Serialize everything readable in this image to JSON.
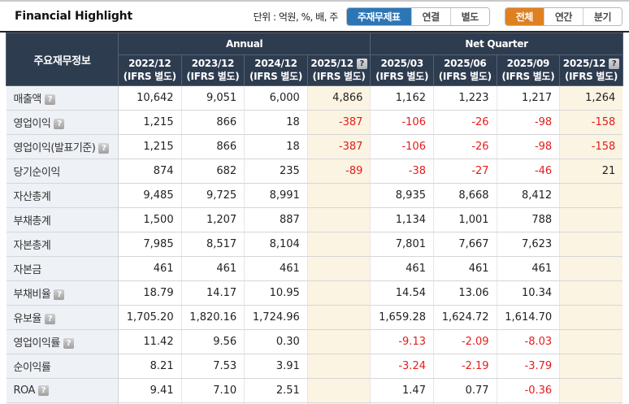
{
  "header": {
    "title": "Financial Highlight",
    "unit_label": "단위 : 억원, %, 배, 주",
    "statement_tabs": [
      {
        "label": "주재무제표",
        "active": true
      },
      {
        "label": "연결",
        "active": false
      },
      {
        "label": "별도",
        "active": false
      }
    ],
    "period_tabs": [
      {
        "label": "전체",
        "active": true
      },
      {
        "label": "연간",
        "active": false
      },
      {
        "label": "분기",
        "active": false
      }
    ]
  },
  "table": {
    "corner_header": "주요재무정보",
    "column_groups": [
      {
        "label": "Annual",
        "span": 4
      },
      {
        "label": "Net Quarter",
        "span": 4
      }
    ],
    "columns": [
      {
        "period": "2022/12",
        "basis": "(IFRS 별도)",
        "help_icon": false,
        "estimate": false
      },
      {
        "period": "2023/12",
        "basis": "(IFRS 별도)",
        "help_icon": false,
        "estimate": false
      },
      {
        "period": "2024/12",
        "basis": "(IFRS 별도)",
        "help_icon": false,
        "estimate": false
      },
      {
        "period": "2025/12",
        "basis": "(IFRS 별도)",
        "help_icon": true,
        "estimate": true
      },
      {
        "period": "2025/03",
        "basis": "(IFRS 별도)",
        "help_icon": false,
        "estimate": false
      },
      {
        "period": "2025/06",
        "basis": "(IFRS 별도)",
        "help_icon": false,
        "estimate": false
      },
      {
        "period": "2025/09",
        "basis": "(IFRS 별도)",
        "help_icon": false,
        "estimate": false
      },
      {
        "period": "2025/12",
        "basis": "(IFRS 별도)",
        "help_icon": true,
        "estimate": true
      }
    ],
    "rows": [
      {
        "label": "매출액",
        "help_icon": true,
        "values": [
          "10,642",
          "9,051",
          "6,000",
          "4,866",
          "1,162",
          "1,223",
          "1,217",
          "1,264"
        ]
      },
      {
        "label": "영업이익",
        "help_icon": true,
        "values": [
          "1,215",
          "866",
          "18",
          "-387",
          "-106",
          "-26",
          "-98",
          "-158"
        ]
      },
      {
        "label": "영업이익(발표기준)",
        "help_icon": true,
        "values": [
          "1,215",
          "866",
          "18",
          "-387",
          "-106",
          "-26",
          "-98",
          "-158"
        ]
      },
      {
        "label": "당기순이익",
        "help_icon": false,
        "values": [
          "874",
          "682",
          "235",
          "-89",
          "-38",
          "-27",
          "-46",
          "21"
        ]
      },
      {
        "label": "자산총계",
        "help_icon": false,
        "values": [
          "9,485",
          "9,725",
          "8,991",
          "",
          "8,935",
          "8,668",
          "8,412",
          ""
        ]
      },
      {
        "label": "부채총계",
        "help_icon": false,
        "values": [
          "1,500",
          "1,207",
          "887",
          "",
          "1,134",
          "1,001",
          "788",
          ""
        ]
      },
      {
        "label": "자본총계",
        "help_icon": false,
        "values": [
          "7,985",
          "8,517",
          "8,104",
          "",
          "7,801",
          "7,667",
          "7,623",
          ""
        ]
      },
      {
        "label": "자본금",
        "help_icon": false,
        "values": [
          "461",
          "461",
          "461",
          "",
          "461",
          "461",
          "461",
          ""
        ]
      },
      {
        "label": "부채비율",
        "help_icon": true,
        "values": [
          "18.79",
          "14.17",
          "10.95",
          "",
          "14.54",
          "13.06",
          "10.34",
          ""
        ]
      },
      {
        "label": "유보율",
        "help_icon": true,
        "values": [
          "1,705.20",
          "1,820.16",
          "1,724.96",
          "",
          "1,659.28",
          "1,624.72",
          "1,614.70",
          ""
        ]
      },
      {
        "label": "영업이익률",
        "help_icon": true,
        "values": [
          "11.42",
          "9.56",
          "0.30",
          "",
          "-9.13",
          "-2.09",
          "-8.03",
          ""
        ]
      },
      {
        "label": "순이익률",
        "help_icon": false,
        "values": [
          "8.21",
          "7.53",
          "3.91",
          "",
          "-3.24",
          "-2.19",
          "-3.79",
          ""
        ]
      },
      {
        "label": "ROA",
        "help_icon": true,
        "values": [
          "9.41",
          "7.10",
          "2.51",
          "",
          "1.47",
          "0.77",
          "-0.36",
          ""
        ]
      }
    ]
  },
  "colors": {
    "active_statement_tab": "#2d76b5",
    "active_period_tab": "#df8121",
    "table_header_bg": "#2e3c50",
    "negative_value": "#e61b1b",
    "estimate_column_bg": "#fbf4e2",
    "metric_label_bg": "#eef1f6"
  }
}
